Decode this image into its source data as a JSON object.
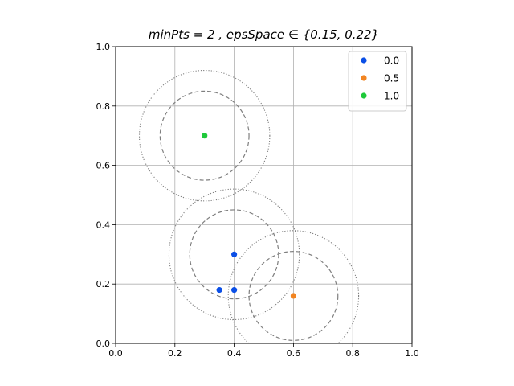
{
  "chart_data": {
    "type": "scatter",
    "title": "minPts = 2 , epsSpace ∈ {0.15, 0.22}",
    "xlabel": "",
    "ylabel": "",
    "xlim": [
      0.0,
      1.0
    ],
    "ylim": [
      0.0,
      1.0
    ],
    "xticks": [
      "0.0",
      "0.2",
      "0.4",
      "0.6",
      "0.8",
      "1.0"
    ],
    "yticks": [
      "0.0",
      "0.2",
      "0.4",
      "0.6",
      "0.8",
      "1.0"
    ],
    "grid": true,
    "legend_position": "top-right",
    "series": [
      {
        "name": "0.0",
        "color": "#0b4fe6",
        "points": [
          [
            0.4,
            0.3
          ],
          [
            0.35,
            0.18
          ],
          [
            0.4,
            0.18
          ]
        ]
      },
      {
        "name": "0.5",
        "color": "#f28522",
        "points": [
          [
            0.6,
            0.16
          ]
        ]
      },
      {
        "name": "1.0",
        "color": "#1ec93a",
        "points": [
          [
            0.3,
            0.7
          ]
        ]
      }
    ],
    "circles": [
      {
        "center": [
          0.3,
          0.7
        ],
        "radii": [
          0.15,
          0.22
        ]
      },
      {
        "center": [
          0.4,
          0.3
        ],
        "radii": [
          0.15,
          0.22
        ]
      },
      {
        "center": [
          0.6,
          0.16
        ],
        "radii": [
          0.15,
          0.22
        ]
      }
    ]
  }
}
